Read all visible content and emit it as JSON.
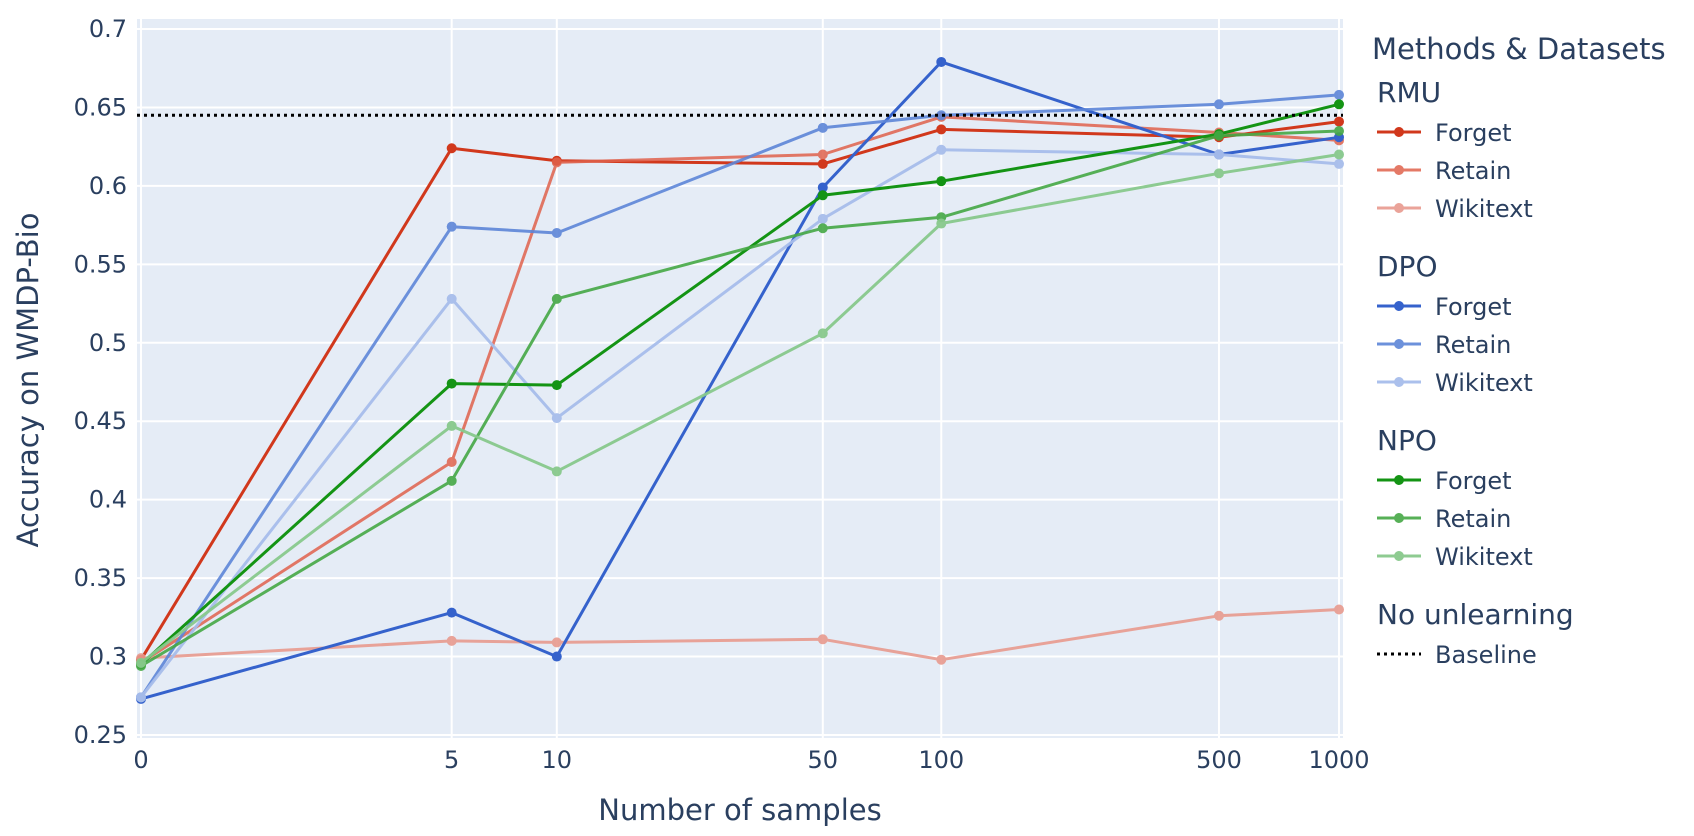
{
  "chart_data": {
    "type": "line",
    "xlabel": "Number of samples",
    "ylabel": "Accuracy on WMDP-Bio",
    "x_tick_labels": [
      "0",
      "5",
      "10",
      "50",
      "100",
      "500",
      "1000"
    ],
    "x_scale": "log(1+x)",
    "y_tick_labels": [
      "0.25",
      "0.3",
      "0.35",
      "0.4",
      "0.45",
      "0.5",
      "0.55",
      "0.6",
      "0.65",
      "0.7"
    ],
    "ylim": [
      0.25,
      0.7
    ],
    "grid": true,
    "legend_title": "Methods & Datasets",
    "legend_position": "right",
    "x": [
      0,
      5,
      10,
      50,
      100,
      500,
      1000
    ],
    "groups": [
      {
        "name": "RMU",
        "series": [
          {
            "name": "Forget",
            "color": "#d1381c",
            "opacity": 1.0,
            "values": [
              0.298,
              0.624,
              0.616,
              0.614,
              0.636,
              0.631,
              0.641
            ]
          },
          {
            "name": "Retain",
            "color": "#e0624c",
            "opacity": 0.85,
            "values": [
              0.296,
              0.424,
              0.615,
              0.62,
              0.644,
              0.634,
              0.629
            ]
          },
          {
            "name": "Wikitext",
            "color": "#e89a8e",
            "opacity": 0.9,
            "values": [
              0.299,
              0.31,
              0.309,
              0.311,
              0.298,
              0.326,
              0.33
            ]
          }
        ]
      },
      {
        "name": "DPO",
        "series": [
          {
            "name": "Forget",
            "color": "#3562cc",
            "opacity": 1.0,
            "values": [
              0.273,
              0.328,
              0.3,
              0.599,
              0.679,
              0.62,
              0.631
            ]
          },
          {
            "name": "Retain",
            "color": "#5d86d8",
            "opacity": 0.9,
            "values": [
              0.274,
              0.574,
              0.57,
              0.637,
              0.645,
              0.652,
              0.658
            ]
          },
          {
            "name": "Wikitext",
            "color": "#a7bdeb",
            "opacity": 0.95,
            "values": [
              0.274,
              0.528,
              0.452,
              0.579,
              0.623,
              0.62,
              0.614
            ]
          }
        ]
      },
      {
        "name": "NPO",
        "series": [
          {
            "name": "Forget",
            "color": "#149414",
            "opacity": 1.0,
            "values": [
              0.295,
              0.474,
              0.473,
              0.594,
              0.603,
              0.633,
              0.652
            ]
          },
          {
            "name": "Retain",
            "color": "#45a845",
            "opacity": 0.9,
            "values": [
              0.294,
              0.412,
              0.528,
              0.573,
              0.58,
              0.632,
              0.635
            ]
          },
          {
            "name": "Wikitext",
            "color": "#88c98c",
            "opacity": 0.95,
            "values": [
              0.296,
              0.447,
              0.418,
              0.506,
              0.576,
              0.608,
              0.62
            ]
          }
        ]
      },
      {
        "name": "No unlearning",
        "series": [
          {
            "name": "Baseline",
            "color": "#000000",
            "dash": "dotted",
            "constant": 0.645
          }
        ]
      }
    ]
  }
}
